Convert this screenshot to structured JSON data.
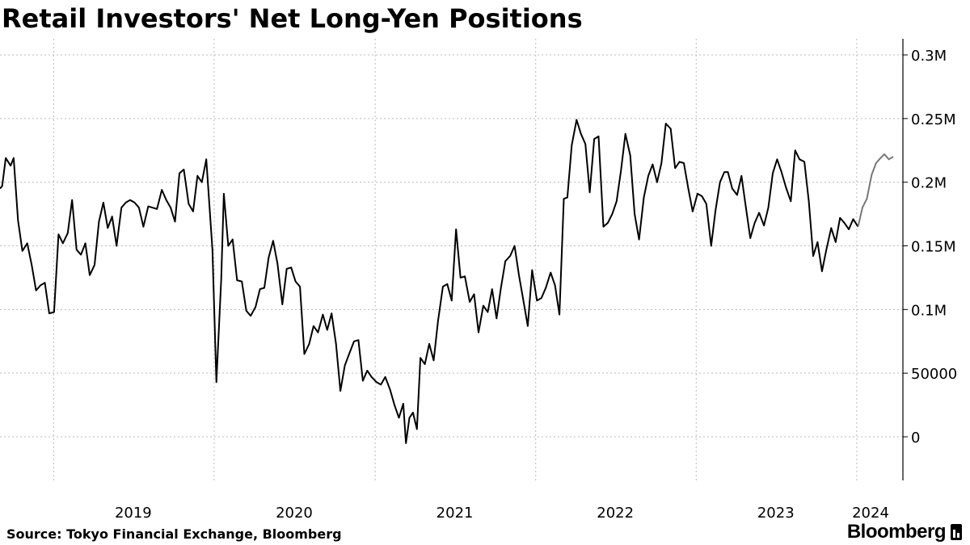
{
  "header": {
    "title": "Retail Investors' Net Long-Yen Positions"
  },
  "footer": {
    "source": "Source: Tokyo Financial Exchange, Bloomberg",
    "brand": "Bloomberg"
  },
  "colors": {
    "series": "#000000",
    "last_segment": "#777777",
    "grid": "#bbbbbb",
    "axis": "#000000"
  },
  "chart_data": {
    "type": "line",
    "title": "Retail Investors' Net Long-Yen Positions",
    "xlabel": "",
    "ylabel": "",
    "ylim": [
      -35000,
      310000
    ],
    "y_ticks": [
      0,
      50000,
      100000,
      150000,
      200000,
      250000,
      300000
    ],
    "y_tick_labels": [
      "0",
      "50000",
      "0.1M",
      "0.15M",
      "0.2M",
      "0.25M",
      "0.3M"
    ],
    "x_range": [
      "2018-09-01",
      "2024-04-15"
    ],
    "x_ticks": [
      "2019-01-01",
      "2020-01-01",
      "2021-01-01",
      "2022-01-01",
      "2023-01-01",
      "2024-01-01"
    ],
    "x_tick_labels": [
      "2019",
      "2020",
      "2021",
      "2022",
      "2023",
      "2024"
    ],
    "grid": true,
    "y_axis_position": "right",
    "series": [
      {
        "values": [
          [
            "2018-09-01",
            195000
          ],
          [
            "2018-09-06",
            197000
          ],
          [
            "2018-09-14",
            219000
          ],
          [
            "2018-09-25",
            213000
          ],
          [
            "2018-10-02",
            219000
          ],
          [
            "2018-10-12",
            170000
          ],
          [
            "2018-10-22",
            146000
          ],
          [
            "2018-11-02",
            152000
          ],
          [
            "2018-11-12",
            135000
          ],
          [
            "2018-11-22",
            115000
          ],
          [
            "2018-12-02",
            119000
          ],
          [
            "2018-12-12",
            121000
          ],
          [
            "2018-12-22",
            97000
          ],
          [
            "2019-01-02",
            98000
          ],
          [
            "2019-01-12",
            159000
          ],
          [
            "2019-01-22",
            152000
          ],
          [
            "2019-02-02",
            160000
          ],
          [
            "2019-02-12",
            186000
          ],
          [
            "2019-02-22",
            147000
          ],
          [
            "2019-03-04",
            143000
          ],
          [
            "2019-03-14",
            152000
          ],
          [
            "2019-03-24",
            127000
          ],
          [
            "2019-04-04",
            135000
          ],
          [
            "2019-04-14",
            169000
          ],
          [
            "2019-04-24",
            184000
          ],
          [
            "2019-05-04",
            164000
          ],
          [
            "2019-05-14",
            173000
          ],
          [
            "2019-05-24",
            150000
          ],
          [
            "2019-06-04",
            180000
          ],
          [
            "2019-06-14",
            184000
          ],
          [
            "2019-06-24",
            186000
          ],
          [
            "2019-07-04",
            184000
          ],
          [
            "2019-07-14",
            180000
          ],
          [
            "2019-07-24",
            165000
          ],
          [
            "2019-08-04",
            181000
          ],
          [
            "2019-08-14",
            180000
          ],
          [
            "2019-08-24",
            179000
          ],
          [
            "2019-09-04",
            194000
          ],
          [
            "2019-09-14",
            186000
          ],
          [
            "2019-09-24",
            180000
          ],
          [
            "2019-10-04",
            169000
          ],
          [
            "2019-10-14",
            207000
          ],
          [
            "2019-10-24",
            210000
          ],
          [
            "2019-11-04",
            183000
          ],
          [
            "2019-11-14",
            177000
          ],
          [
            "2019-11-24",
            205000
          ],
          [
            "2019-12-04",
            200000
          ],
          [
            "2019-12-14",
            218000
          ],
          [
            "2019-12-28",
            147000
          ],
          [
            "2020-01-06",
            43000
          ],
          [
            "2020-01-17",
            124000
          ],
          [
            "2020-01-23",
            191000
          ],
          [
            "2020-02-02",
            150000
          ],
          [
            "2020-02-12",
            155000
          ],
          [
            "2020-02-22",
            123000
          ],
          [
            "2020-03-04",
            122000
          ],
          [
            "2020-03-14",
            99000
          ],
          [
            "2020-03-24",
            95000
          ],
          [
            "2020-04-04",
            102000
          ],
          [
            "2020-04-14",
            116000
          ],
          [
            "2020-04-24",
            117000
          ],
          [
            "2020-05-04",
            141000
          ],
          [
            "2020-05-14",
            154000
          ],
          [
            "2020-05-24",
            136000
          ],
          [
            "2020-06-04",
            104000
          ],
          [
            "2020-06-14",
            132000
          ],
          [
            "2020-06-24",
            133000
          ],
          [
            "2020-07-04",
            122000
          ],
          [
            "2020-07-14",
            118000
          ],
          [
            "2020-07-24",
            65000
          ],
          [
            "2020-08-04",
            73000
          ],
          [
            "2020-08-14",
            87000
          ],
          [
            "2020-08-24",
            82000
          ],
          [
            "2020-09-04",
            96000
          ],
          [
            "2020-09-14",
            84000
          ],
          [
            "2020-09-24",
            97000
          ],
          [
            "2020-10-04",
            73000
          ],
          [
            "2020-10-14",
            36000
          ],
          [
            "2020-10-24",
            56000
          ],
          [
            "2020-11-04",
            66000
          ],
          [
            "2020-11-14",
            75000
          ],
          [
            "2020-11-24",
            76000
          ],
          [
            "2020-12-04",
            44000
          ],
          [
            "2020-12-14",
            52000
          ],
          [
            "2020-12-24",
            47000
          ],
          [
            "2021-01-04",
            43000
          ],
          [
            "2021-01-14",
            41000
          ],
          [
            "2021-01-24",
            47000
          ],
          [
            "2021-02-04",
            37000
          ],
          [
            "2021-02-14",
            25000
          ],
          [
            "2021-02-24",
            15000
          ],
          [
            "2021-03-06",
            26000
          ],
          [
            "2021-03-12",
            -5000
          ],
          [
            "2021-03-20",
            15000
          ],
          [
            "2021-03-28",
            19000
          ],
          [
            "2021-04-06",
            6000
          ],
          [
            "2021-04-14",
            62000
          ],
          [
            "2021-04-24",
            57000
          ],
          [
            "2021-05-04",
            73000
          ],
          [
            "2021-05-14",
            60000
          ],
          [
            "2021-05-24",
            91000
          ],
          [
            "2021-06-04",
            118000
          ],
          [
            "2021-06-14",
            120000
          ],
          [
            "2021-06-24",
            107000
          ],
          [
            "2021-07-04",
            163000
          ],
          [
            "2021-07-14",
            125000
          ],
          [
            "2021-07-24",
            126000
          ],
          [
            "2021-08-04",
            106000
          ],
          [
            "2021-08-14",
            112000
          ],
          [
            "2021-08-24",
            82000
          ],
          [
            "2021-09-04",
            103000
          ],
          [
            "2021-09-14",
            98000
          ],
          [
            "2021-09-24",
            116000
          ],
          [
            "2021-10-04",
            93000
          ],
          [
            "2021-10-14",
            117000
          ],
          [
            "2021-10-24",
            138000
          ],
          [
            "2021-11-04",
            142000
          ],
          [
            "2021-11-14",
            150000
          ],
          [
            "2021-11-24",
            127000
          ],
          [
            "2021-12-04",
            107000
          ],
          [
            "2021-12-14",
            87000
          ],
          [
            "2021-12-24",
            131000
          ],
          [
            "2022-01-04",
            107000
          ],
          [
            "2022-01-14",
            109000
          ],
          [
            "2022-01-24",
            117000
          ],
          [
            "2022-02-04",
            129000
          ],
          [
            "2022-02-14",
            119000
          ],
          [
            "2022-02-24",
            96000
          ],
          [
            "2022-03-06",
            187000
          ],
          [
            "2022-03-14",
            188000
          ],
          [
            "2022-03-24",
            229000
          ],
          [
            "2022-04-04",
            249000
          ],
          [
            "2022-04-14",
            238000
          ],
          [
            "2022-04-24",
            230000
          ],
          [
            "2022-05-04",
            192000
          ],
          [
            "2022-05-14",
            234000
          ],
          [
            "2022-05-24",
            236000
          ],
          [
            "2022-06-04",
            165000
          ],
          [
            "2022-06-14",
            168000
          ],
          [
            "2022-06-24",
            175000
          ],
          [
            "2022-07-04",
            185000
          ],
          [
            "2022-07-14",
            209000
          ],
          [
            "2022-07-24",
            238000
          ],
          [
            "2022-08-04",
            221000
          ],
          [
            "2022-08-14",
            175000
          ],
          [
            "2022-08-24",
            155000
          ],
          [
            "2022-09-04",
            188000
          ],
          [
            "2022-09-14",
            205000
          ],
          [
            "2022-09-24",
            214000
          ],
          [
            "2022-10-04",
            200000
          ],
          [
            "2022-10-14",
            215000
          ],
          [
            "2022-10-24",
            246000
          ],
          [
            "2022-11-04",
            242000
          ],
          [
            "2022-11-14",
            211000
          ],
          [
            "2022-11-24",
            216000
          ],
          [
            "2022-12-04",
            215000
          ],
          [
            "2022-12-14",
            195000
          ],
          [
            "2022-12-24",
            177000
          ],
          [
            "2023-01-04",
            191000
          ],
          [
            "2023-01-14",
            189000
          ],
          [
            "2023-01-24",
            183000
          ],
          [
            "2023-02-04",
            150000
          ],
          [
            "2023-02-14",
            178000
          ],
          [
            "2023-02-24",
            200000
          ],
          [
            "2023-03-06",
            208000
          ],
          [
            "2023-03-14",
            208000
          ],
          [
            "2023-03-24",
            195000
          ],
          [
            "2023-04-04",
            190000
          ],
          [
            "2023-04-14",
            205000
          ],
          [
            "2023-04-24",
            180000
          ],
          [
            "2023-05-04",
            156000
          ],
          [
            "2023-05-14",
            168000
          ],
          [
            "2023-05-24",
            176000
          ],
          [
            "2023-06-04",
            166000
          ],
          [
            "2023-06-14",
            180000
          ],
          [
            "2023-06-24",
            207000
          ],
          [
            "2023-07-04",
            218000
          ],
          [
            "2023-07-14",
            208000
          ],
          [
            "2023-07-24",
            196000
          ],
          [
            "2023-08-04",
            185000
          ],
          [
            "2023-08-14",
            225000
          ],
          [
            "2023-08-24",
            218000
          ],
          [
            "2023-09-04",
            216000
          ],
          [
            "2023-09-14",
            185000
          ],
          [
            "2023-09-24",
            142000
          ],
          [
            "2023-10-04",
            153000
          ],
          [
            "2023-10-14",
            130000
          ],
          [
            "2023-10-24",
            147000
          ],
          [
            "2023-11-04",
            164000
          ],
          [
            "2023-11-14",
            153000
          ],
          [
            "2023-11-24",
            172000
          ],
          [
            "2023-12-04",
            168000
          ],
          [
            "2023-12-14",
            163000
          ],
          [
            "2023-12-24",
            171000
          ],
          [
            "2024-01-04",
            165000
          ],
          [
            "2024-01-14",
            180000
          ],
          [
            "2024-01-24",
            187000
          ],
          [
            "2024-02-04",
            206000
          ],
          [
            "2024-02-14",
            215000
          ],
          [
            "2024-02-24",
            219000
          ],
          [
            "2024-03-04",
            222000
          ],
          [
            "2024-03-14",
            218000
          ],
          [
            "2024-03-24",
            220000
          ]
        ]
      }
    ]
  }
}
